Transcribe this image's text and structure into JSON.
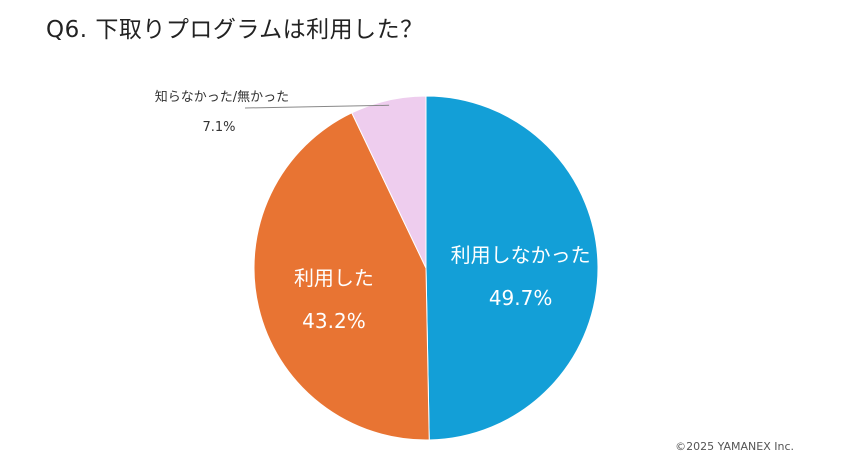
{
  "chart_data": {
    "type": "pie",
    "title": "Q6. 下取りプログラムは利用した？",
    "start": "top",
    "direction": "clockwise",
    "slices": [
      {
        "label": "利用しなかった",
        "value": 49.7,
        "display": "49.7%",
        "color": "#139fd7",
        "label_position": "inside"
      },
      {
        "label": "利用した",
        "value": 43.2,
        "display": "43.2%",
        "color": "#e87433",
        "label_position": "inside"
      },
      {
        "label": "知らなかった/無かった",
        "value": 7.1,
        "display": "7.1%",
        "color": "#eecdee",
        "label_position": "outside"
      }
    ]
  },
  "footer": {
    "copyright": "©2025 YAMANEX Inc."
  }
}
